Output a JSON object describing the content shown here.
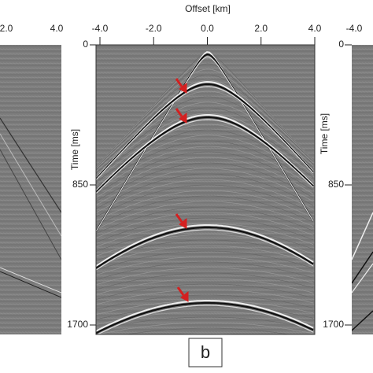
{
  "center_panel": {
    "x_axis_label": "Offset [km]",
    "x_ticks": [
      "-4.0",
      "-2.0",
      "0.0",
      "2.0",
      "4.0"
    ],
    "y_axis_label": "Time [ms]",
    "y_ticks": [
      "0",
      "850",
      "1700"
    ]
  },
  "left_panel": {
    "x_ticks": [
      "2.0",
      "4.0"
    ]
  },
  "right_panel": {
    "x_ticks": [
      "-4.0"
    ],
    "y_axis_label": "Time [ms]",
    "y_ticks": [
      "0",
      "850",
      "1700"
    ]
  },
  "panel_label": "b"
}
